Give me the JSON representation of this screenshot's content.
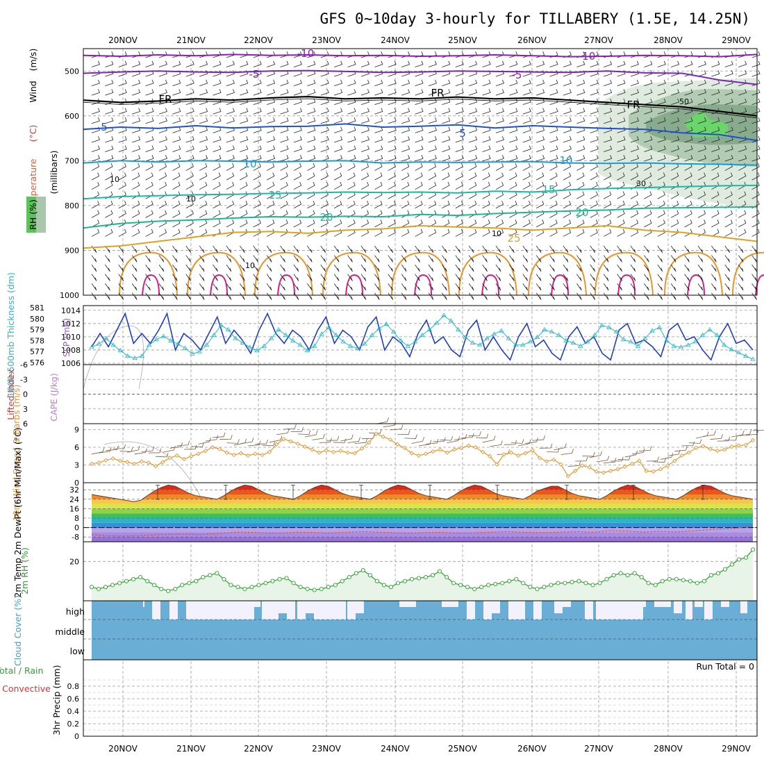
{
  "title": "GFS 0~10day 3-hourly for TILLABERY (1.5E, 14.25N)",
  "dates": [
    "20NOV",
    "21NOV",
    "22NOV",
    "23NOV",
    "24NOV",
    "25NOV",
    "26NOV",
    "27NOV",
    "28NOV",
    "29NOV"
  ],
  "colors": {
    "grid": "#9a9a9a",
    "slp": "#1f3fbf",
    "thick": "#29b6c6",
    "wind10": "#e8952a",
    "barb": "#7a5a3a",
    "rh2m": "#2e9e2e",
    "cloud": "#6aaed6",
    "freezing": "#000000"
  },
  "chart_data": [
    {
      "type": "contour",
      "title": "Upper-air cross section",
      "ylabel_words": [
        "Temperature",
        "(°C)",
        "Wind",
        "(m/s)"
      ],
      "ylabel_units": "(millibars)",
      "rh_label": "RH (%)",
      "yticks": [
        "500",
        "600",
        "700",
        "800",
        "900",
        "1000"
      ],
      "ylim": [
        450,
        1000
      ],
      "contour_labels": [
        "-10",
        "-5",
        "FR",
        "5",
        "10",
        "15",
        "20",
        "25",
        "-10",
        "-5",
        "FR",
        "5",
        "10",
        "15",
        "20",
        "10",
        "10",
        "10",
        "10",
        "30",
        "50"
      ],
      "isotherms": [
        {
          "label": "-10",
          "color": "#8a1fb0",
          "p": [
            465,
            467,
            464,
            466,
            463,
            465,
            464,
            466,
            465,
            467,
            466,
            464,
            466,
            468,
            467,
            465,
            466,
            468,
            463
          ]
        },
        {
          "label": "-5",
          "color": "#7a24b8",
          "p": [
            505,
            502,
            500,
            502,
            503,
            500,
            499,
            501,
            503,
            502,
            500,
            501,
            502,
            503,
            500,
            504,
            505,
            520,
            530
          ]
        },
        {
          "label": "FR",
          "color": "#000000",
          "p": [
            565,
            570,
            567,
            562,
            565,
            560,
            557,
            562,
            560,
            562,
            558,
            562,
            560,
            565,
            570,
            575,
            580,
            590,
            600
          ]
        },
        {
          "label": "5",
          "color": "#1f4fcf",
          "p": [
            630,
            625,
            628,
            622,
            627,
            624,
            623,
            618,
            625,
            623,
            620,
            627,
            622,
            625,
            628,
            630,
            638,
            642,
            655
          ]
        },
        {
          "label": "10",
          "color": "#1a9ad6",
          "p": [
            705,
            700,
            703,
            700,
            701,
            703,
            701,
            700,
            705,
            703,
            704,
            703,
            702,
            705,
            706,
            705,
            707,
            708,
            710
          ]
        },
        {
          "label": "15",
          "color": "#1ab8a8",
          "p": [
            785,
            780,
            778,
            776,
            775,
            773,
            772,
            770,
            771,
            770,
            772,
            768,
            770,
            765,
            762,
            760,
            758,
            756,
            755
          ]
        },
        {
          "label": "20",
          "color": "#1ab890",
          "p": [
            850,
            840,
            835,
            832,
            828,
            825,
            826,
            824,
            825,
            820,
            822,
            818,
            815,
            812,
            810,
            806,
            805,
            804,
            803
          ]
        },
        {
          "label": "25",
          "color": "#e0a020",
          "p": [
            895,
            890,
            880,
            870,
            860,
            858,
            862,
            855,
            852,
            845,
            848,
            850,
            855,
            850,
            845,
            855,
            860,
            870,
            880
          ]
        }
      ]
    },
    {
      "type": "line",
      "ylabel": "1000-500mb Thickness (dm)",
      "ylabel2": "SLP (mb)",
      "yticks_left": [
        "576",
        "577",
        "578",
        "579",
        "580",
        "581"
      ],
      "yticks_right": [
        "1006",
        "1008",
        "1010",
        "1012",
        "1014"
      ],
      "ylim_left": [
        576,
        581
      ],
      "ylim_right": [
        1006,
        1014.5
      ],
      "series": [
        {
          "name": "SLP",
          "axis": "right",
          "values": [
            1008.5,
            1010.5,
            1008.5,
            1011,
            1013.5,
            1009,
            1010.5,
            1009,
            1011,
            1013.5,
            1008,
            1010.5,
            1009.5,
            1008,
            1010.5,
            1013,
            1009,
            1011,
            1009.5,
            1007.5,
            1011,
            1013.5,
            1010.5,
            1009,
            1011,
            1010,
            1008,
            1011,
            1013,
            1009,
            1011,
            1010,
            1008,
            1011.5,
            1013,
            1008,
            1010,
            1009,
            1007,
            1010.5,
            1012.5,
            1009,
            1010,
            1008,
            1007,
            1011,
            1012.5,
            1008,
            1010,
            1008,
            1006.5,
            1010,
            1012,
            1008.5,
            1009.5,
            1007.5,
            1006.5,
            1010,
            1011.5,
            1009,
            1010,
            1007.5,
            1006.5,
            1011,
            1012,
            1009,
            1009.5,
            1008.5,
            1007,
            1011,
            1012,
            1009.5,
            1010,
            1008,
            1006.5,
            1010,
            1012,
            1009,
            1009.5,
            1008
          ]
        },
        {
          "name": "Thickness",
          "axis": "left",
          "values": [
            577.4,
            577.7,
            578.2,
            577.6,
            577.1,
            576.6,
            576.4,
            576.6,
            577.6,
            578.1,
            578.4,
            578.0,
            577.7,
            577.3,
            576.8,
            577.0,
            577.6,
            578.5,
            579.4,
            579.0,
            578.2,
            577.8,
            577.4,
            577.1,
            577.5,
            578.2,
            579.0,
            578.5,
            578.0,
            577.6,
            577.1,
            577.5,
            578.6,
            579.2,
            578.5,
            577.9,
            577.5,
            577.3,
            577.7,
            578.5,
            579.1,
            579.5,
            578.8,
            578.0,
            577.5,
            577.9,
            578.5,
            579.0,
            579.6,
            580.3,
            579.8,
            579.0,
            578.3,
            577.8,
            577.6,
            578.2,
            578.6,
            578.9,
            578.2,
            577.6,
            577.6,
            577.9,
            578.3,
            579.0,
            578.8,
            578.5,
            578.0,
            577.8,
            577.5,
            577.9,
            578.5,
            579.4,
            579.2,
            578.8,
            578.1,
            577.9,
            577.5,
            578.2,
            578.9,
            579.2,
            578.0,
            577.5,
            577.4,
            577.6,
            577.9,
            578.5,
            579.0,
            578.5,
            577.6,
            577.2,
            576.9,
            576.6,
            576.3
          ]
        }
      ]
    },
    {
      "type": "line",
      "ylabel": "Lifted Index",
      "ylabel2": "CAPE (J/kg)",
      "yticks": [
        "-6",
        "-3",
        "0",
        "3",
        "6"
      ],
      "ylim": [
        -6,
        6
      ],
      "series": []
    },
    {
      "type": "line",
      "ylabel": "10m Wind Speed & Barbs (m/s)",
      "yticks": [
        "9",
        "6",
        "3",
        "0"
      ],
      "ylim": [
        0,
        10
      ],
      "series": [
        {
          "name": "10m Wind Speed",
          "values": [
            3.2,
            3.4,
            3.8,
            4.1,
            3.7,
            3.5,
            3.2,
            3.6,
            3.4,
            2.8,
            3.5,
            4.2,
            4.6,
            4.0,
            4.5,
            4.9,
            5.4,
            6.0,
            5.7,
            5.1,
            4.7,
            5.0,
            4.6,
            4.9,
            4.7,
            5.2,
            6.5,
            7.4,
            7.0,
            6.6,
            6.1,
            5.6,
            5.1,
            5.5,
            5.2,
            5.4,
            5.1,
            5.0,
            5.8,
            6.8,
            8.3,
            7.8,
            7.3,
            6.5,
            5.9,
            5.0,
            4.6,
            4.9,
            5.3,
            5.6,
            5.1,
            5.6,
            5.9,
            6.3,
            6.0,
            5.2,
            4.5,
            3.1,
            4.8,
            5.1,
            4.6,
            5.0,
            5.5,
            4.2,
            3.6,
            3.9,
            3.1,
            1.1,
            2.0,
            2.9,
            2.6,
            1.9,
            1.7,
            2.0,
            2.3,
            2.7,
            3.2,
            3.7,
            2.0,
            1.9,
            2.3,
            2.9,
            3.7,
            4.6,
            5.1,
            5.9,
            6.2,
            5.7,
            5.4,
            5.6,
            6.1,
            6.3,
            6.4,
            7.2
          ]
        }
      ]
    },
    {
      "type": "area",
      "ylabel": "2m Temp 2m DewPt (6hr Min/Max) (°C)",
      "yticks": [
        "32",
        "24",
        "16",
        "8",
        "0",
        "-8"
      ],
      "ylim": [
        -12,
        38
      ],
      "series": [
        {
          "name": "2m Temp",
          "values": [
            28,
            27,
            26,
            25,
            24,
            23,
            22,
            23,
            27,
            31,
            34,
            36,
            35,
            32,
            29,
            27,
            26,
            25,
            24,
            27,
            31,
            34,
            36,
            35,
            32,
            29,
            27,
            26,
            25,
            24,
            27,
            31,
            34,
            36,
            35,
            32,
            29,
            27,
            26,
            25,
            24,
            27,
            31,
            34,
            36,
            35,
            32,
            29,
            27,
            26,
            25,
            24,
            27,
            31,
            34,
            36,
            35,
            32,
            29,
            27,
            26,
            25,
            24,
            27,
            31,
            33,
            35,
            35,
            32,
            29,
            27,
            26,
            25,
            24,
            27,
            31,
            34,
            36,
            35,
            32,
            29,
            27,
            26,
            25,
            24,
            27,
            31,
            34,
            36,
            35,
            32,
            29,
            27,
            26,
            25,
            24
          ]
        },
        {
          "name": "2m DewPt",
          "values": [
            -6,
            -6.5,
            -7,
            -7,
            -7.2,
            -7,
            -6.8,
            -6.5,
            -6.2,
            -6,
            -5.8,
            -5.5,
            -5.6,
            -5.8,
            -6,
            -5.5,
            -5,
            -4.5,
            -4,
            -3.8,
            -4,
            -4.2,
            -4.5,
            -4.6,
            -4.5,
            -4.3,
            -4,
            -4,
            -4.1,
            -4.3,
            -4.5,
            -4.3,
            -4,
            -3.8,
            -3.5,
            -3.6,
            -3.8,
            -4,
            -4.2,
            -4.4,
            -4.5,
            -4.4,
            -4.3,
            -4.1,
            -4,
            -4.2,
            -4.4,
            -4.6,
            -4.5,
            -4.3,
            -4,
            -3.8,
            -3.6,
            -3.5,
            -3.8,
            -4,
            -4.2,
            -4.3,
            -4.2,
            -4,
            -3.8,
            -3.6,
            -3.5,
            -3.8,
            -4,
            -3.2,
            -2.5,
            -2.8,
            -3,
            -3.5,
            -3.8,
            -3.6,
            -3.2,
            -3.4,
            -3.7,
            -3.5,
            -3,
            -2.6,
            -2,
            -1.5,
            -1.2,
            -1,
            -0.5,
            0.5,
            1
          ]
        }
      ]
    },
    {
      "type": "area",
      "ylabel": "2m RH (%)",
      "yticks": [
        "20"
      ],
      "ylim": [
        0,
        30
      ],
      "series": [
        {
          "name": "2m RH",
          "values": [
            7,
            6,
            7,
            8,
            9,
            10,
            11,
            12,
            10,
            8,
            6,
            5,
            6,
            8,
            9,
            10,
            12,
            13,
            14,
            11,
            8,
            7,
            6,
            7,
            8,
            9,
            10,
            11,
            11.5,
            9,
            7,
            6,
            5.5,
            6,
            7,
            8,
            10,
            12,
            14,
            15.5,
            13,
            10,
            8,
            7,
            9,
            10,
            11,
            11.5,
            12,
            13,
            15,
            12,
            9,
            8,
            7,
            6,
            7,
            8,
            8.5,
            9,
            10,
            11,
            9,
            7,
            6,
            7,
            8,
            9,
            9,
            9.5,
            10,
            9,
            8,
            9,
            11,
            13,
            14,
            13,
            14,
            12,
            9,
            8,
            10,
            11,
            11,
            10.5,
            10,
            9,
            10,
            13,
            14,
            16,
            18.5,
            21,
            22,
            26
          ]
        }
      ]
    },
    {
      "type": "heatmap",
      "ylabel": "Cloud Cover (%)",
      "rows": [
        "high",
        "middle",
        "low"
      ]
    },
    {
      "type": "bar",
      "ylabel_a": "Total / Rain",
      "ylabel_b": "Convective",
      "ylabel": "3hr Precip (mm)",
      "yticks": [
        "0.8",
        "0.6",
        "0.4",
        "0.2",
        "0"
      ],
      "ylim": [
        0,
        1
      ],
      "run_total": "Run Total = 0",
      "values": []
    }
  ]
}
